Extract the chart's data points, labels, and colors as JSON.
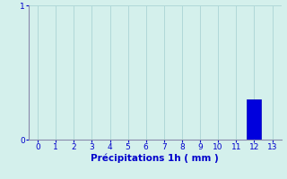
{
  "x_values": [
    0,
    1,
    2,
    3,
    4,
    5,
    6,
    7,
    8,
    9,
    10,
    11,
    12,
    13
  ],
  "bar_value_index": 12,
  "bar_value": 0.3,
  "ylim": [
    0,
    1
  ],
  "xlim": [
    -0.5,
    13.5
  ],
  "xlabel": "Précipitations 1h ( mm )",
  "bar_color": "#0000dd",
  "bar_edge_color": "#0000bb",
  "background_color": "#d4f0ec",
  "grid_color": "#b0d8d8",
  "spine_color": "#8888aa",
  "tick_color": "#0000cc",
  "label_color": "#0000cc",
  "yticks": [
    0,
    1
  ],
  "xticks": [
    0,
    1,
    2,
    3,
    4,
    5,
    6,
    7,
    8,
    9,
    10,
    11,
    12,
    13
  ],
  "tick_labelsize": 6.5,
  "xlabel_fontsize": 7.5
}
